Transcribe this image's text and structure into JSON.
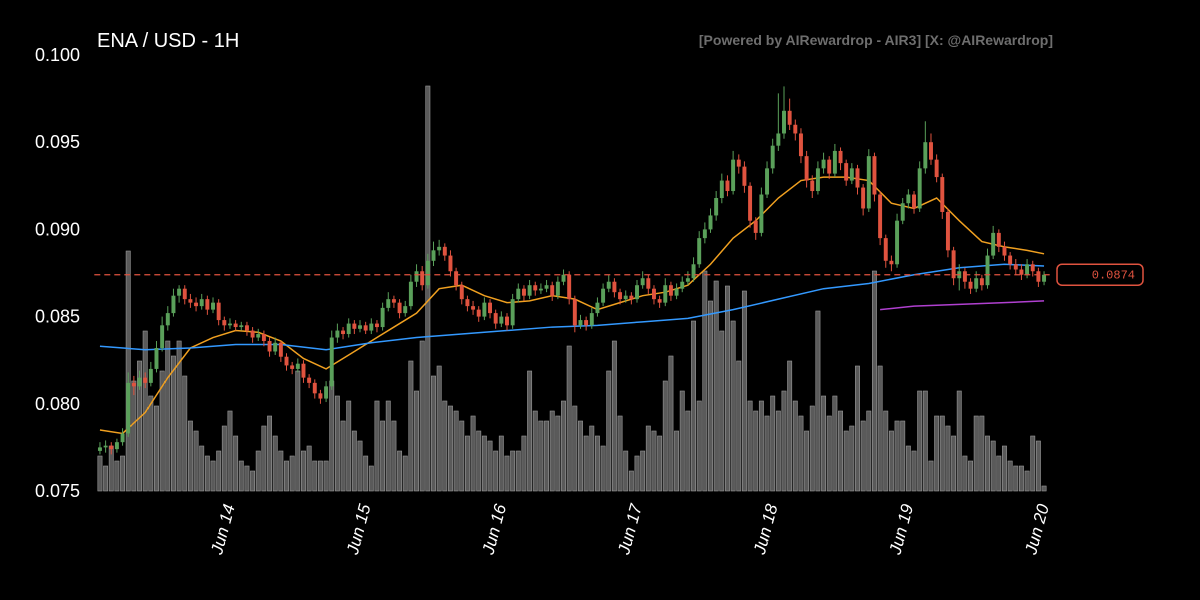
{
  "chart_data": {
    "type": "candlestick",
    "title": "ENA / USD - 1H",
    "subtitle": "[Powered by AIRewardrop - AIR3] [X: @AIRewardrop]",
    "up_color": "#5aa05a",
    "down_color": "#e0533f",
    "volume_color": "#6a6a6a",
    "ylim": [
      0.075,
      0.1
    ],
    "yticks": [
      0.075,
      {
        "value": 0.08,
        "label": "0.080"
      },
      0.085,
      {
        "value": 0.09,
        "label": "0.090"
      },
      0.095,
      {
        "value": 0.1,
        "label": "0.100"
      }
    ],
    "xlim": [
      -1,
      168
    ],
    "xticks": [
      {
        "value": 23,
        "label": "Jun 14"
      },
      {
        "value": 47,
        "label": "Jun 15"
      },
      {
        "value": 71,
        "label": "Jun 16"
      },
      {
        "value": 95,
        "label": "Jun 17"
      },
      {
        "value": 119,
        "label": "Jun 18"
      },
      {
        "value": 143,
        "label": "Jun 19"
      },
      {
        "value": 167,
        "label": "Jun 20"
      }
    ],
    "last_price": 0.0874,
    "last_price_color": "#e0533f",
    "candles": [
      [
        0.0773,
        0.0778,
        0.0771,
        0.0775
      ],
      [
        0.0775,
        0.0779,
        0.0772,
        0.0776
      ],
      [
        0.0776,
        0.0778,
        0.0771,
        0.0774
      ],
      [
        0.0774,
        0.078,
        0.0772,
        0.0778
      ],
      [
        0.0778,
        0.0786,
        0.0776,
        0.0783
      ],
      [
        0.0783,
        0.0818,
        0.0781,
        0.0812
      ],
      [
        0.0812,
        0.0816,
        0.0805,
        0.081
      ],
      [
        0.081,
        0.0819,
        0.0808,
        0.0815
      ],
      [
        0.0815,
        0.0818,
        0.0809,
        0.0812
      ],
      [
        0.0812,
        0.0824,
        0.081,
        0.082
      ],
      [
        0.082,
        0.0836,
        0.0818,
        0.0832
      ],
      [
        0.0832,
        0.085,
        0.083,
        0.0845
      ],
      [
        0.0845,
        0.0856,
        0.0842,
        0.0852
      ],
      [
        0.0852,
        0.0866,
        0.085,
        0.0862
      ],
      [
        0.0862,
        0.0868,
        0.0858,
        0.0866
      ],
      [
        0.0866,
        0.0868,
        0.0857,
        0.086
      ],
      [
        0.086,
        0.0863,
        0.0855,
        0.0858
      ],
      [
        0.0858,
        0.0861,
        0.0853,
        0.0856
      ],
      [
        0.0856,
        0.0863,
        0.0854,
        0.086
      ],
      [
        0.086,
        0.0862,
        0.0851,
        0.0854
      ],
      [
        0.0854,
        0.0861,
        0.0852,
        0.0858
      ],
      [
        0.0858,
        0.086,
        0.0845,
        0.0848
      ],
      [
        0.0848,
        0.085,
        0.0842,
        0.0845
      ],
      [
        0.0845,
        0.0849,
        0.0843,
        0.0846
      ],
      [
        0.0846,
        0.0848,
        0.0842,
        0.0844
      ],
      [
        0.0844,
        0.0847,
        0.0842,
        0.0845
      ],
      [
        0.0845,
        0.0847,
        0.0839,
        0.0842
      ],
      [
        0.0842,
        0.0844,
        0.0835,
        0.0838
      ],
      [
        0.0838,
        0.0843,
        0.0836,
        0.084
      ],
      [
        0.084,
        0.0842,
        0.0833,
        0.0836
      ],
      [
        0.0836,
        0.0838,
        0.0827,
        0.083
      ],
      [
        0.083,
        0.0838,
        0.0828,
        0.0835
      ],
      [
        0.0835,
        0.0836,
        0.0824,
        0.0827
      ],
      [
        0.0827,
        0.0829,
        0.0819,
        0.0822
      ],
      [
        0.0822,
        0.0824,
        0.0817,
        0.082
      ],
      [
        0.082,
        0.0826,
        0.0818,
        0.0823
      ],
      [
        0.0823,
        0.0825,
        0.0812,
        0.0815
      ],
      [
        0.0815,
        0.0817,
        0.0809,
        0.0812
      ],
      [
        0.0812,
        0.0814,
        0.0803,
        0.0806
      ],
      [
        0.0806,
        0.0808,
        0.08,
        0.0803
      ],
      [
        0.0803,
        0.0813,
        0.0801,
        0.081
      ],
      [
        0.081,
        0.0842,
        0.0808,
        0.0838
      ],
      [
        0.0838,
        0.0846,
        0.0835,
        0.0842
      ],
      [
        0.0842,
        0.0844,
        0.0837,
        0.084
      ],
      [
        0.084,
        0.0849,
        0.0838,
        0.0846
      ],
      [
        0.0846,
        0.0848,
        0.084,
        0.0843
      ],
      [
        0.0843,
        0.0848,
        0.0841,
        0.0845
      ],
      [
        0.0845,
        0.0847,
        0.084,
        0.0842
      ],
      [
        0.0842,
        0.0849,
        0.084,
        0.0846
      ],
      [
        0.0846,
        0.0848,
        0.0841,
        0.0844
      ],
      [
        0.0844,
        0.0858,
        0.0842,
        0.0855
      ],
      [
        0.0855,
        0.0864,
        0.0853,
        0.086
      ],
      [
        0.086,
        0.0862,
        0.0855,
        0.0858
      ],
      [
        0.0858,
        0.086,
        0.0849,
        0.0852
      ],
      [
        0.0852,
        0.0859,
        0.085,
        0.0856
      ],
      [
        0.0856,
        0.0874,
        0.0854,
        0.087
      ],
      [
        0.087,
        0.088,
        0.0867,
        0.0876
      ],
      [
        0.0876,
        0.0879,
        0.0865,
        0.0868
      ],
      [
        0.0868,
        0.0886,
        0.0866,
        0.0882
      ],
      [
        0.0882,
        0.0893,
        0.0879,
        0.0888
      ],
      [
        0.0888,
        0.0894,
        0.0885,
        0.089
      ],
      [
        0.089,
        0.0892,
        0.0882,
        0.0885
      ],
      [
        0.0885,
        0.0888,
        0.0873,
        0.0876
      ],
      [
        0.0876,
        0.0878,
        0.0865,
        0.0868
      ],
      [
        0.0868,
        0.087,
        0.0857,
        0.086
      ],
      [
        0.086,
        0.0862,
        0.0853,
        0.0856
      ],
      [
        0.0856,
        0.0859,
        0.0851,
        0.0854
      ],
      [
        0.0854,
        0.0856,
        0.0847,
        0.085
      ],
      [
        0.085,
        0.0861,
        0.0848,
        0.0858
      ],
      [
        0.0858,
        0.086,
        0.0849,
        0.0852
      ],
      [
        0.0852,
        0.0854,
        0.0843,
        0.0846
      ],
      [
        0.0846,
        0.0853,
        0.0844,
        0.085
      ],
      [
        0.085,
        0.0852,
        0.0842,
        0.0845
      ],
      [
        0.0845,
        0.0863,
        0.0843,
        0.086
      ],
      [
        0.086,
        0.0869,
        0.0858,
        0.0866
      ],
      [
        0.0866,
        0.0868,
        0.0859,
        0.0862
      ],
      [
        0.0862,
        0.0871,
        0.086,
        0.0868
      ],
      [
        0.0868,
        0.087,
        0.0862,
        0.0865
      ],
      [
        0.0865,
        0.0869,
        0.0863,
        0.0866
      ],
      [
        0.0866,
        0.0871,
        0.0864,
        0.0868
      ],
      [
        0.0868,
        0.087,
        0.0859,
        0.0862
      ],
      [
        0.0862,
        0.0873,
        0.086,
        0.087
      ],
      [
        0.087,
        0.0877,
        0.0868,
        0.0874
      ],
      [
        0.0874,
        0.0876,
        0.0857,
        0.086
      ],
      [
        0.086,
        0.0862,
        0.0841,
        0.0845
      ],
      [
        0.0845,
        0.0851,
        0.0843,
        0.0848
      ],
      [
        0.0848,
        0.085,
        0.0842,
        0.0845
      ],
      [
        0.0845,
        0.0855,
        0.0843,
        0.0852
      ],
      [
        0.0852,
        0.0861,
        0.085,
        0.0858
      ],
      [
        0.0858,
        0.0869,
        0.0856,
        0.0866
      ],
      [
        0.0866,
        0.0874,
        0.0864,
        0.087
      ],
      [
        0.087,
        0.0872,
        0.0861,
        0.0864
      ],
      [
        0.0864,
        0.0866,
        0.0857,
        0.086
      ],
      [
        0.086,
        0.0865,
        0.0858,
        0.0862
      ],
      [
        0.0862,
        0.0864,
        0.0857,
        0.086
      ],
      [
        0.086,
        0.0871,
        0.0858,
        0.0868
      ],
      [
        0.0868,
        0.0876,
        0.0866,
        0.0872
      ],
      [
        0.0872,
        0.0874,
        0.0863,
        0.0866
      ],
      [
        0.0866,
        0.0868,
        0.0857,
        0.086
      ],
      [
        0.086,
        0.0862,
        0.0855,
        0.0858
      ],
      [
        0.0858,
        0.0872,
        0.0856,
        0.0868
      ],
      [
        0.0868,
        0.087,
        0.0859,
        0.0862
      ],
      [
        0.0862,
        0.0869,
        0.086,
        0.0866
      ],
      [
        0.0866,
        0.0873,
        0.0864,
        0.087
      ],
      [
        0.087,
        0.0876,
        0.0868,
        0.0872
      ],
      [
        0.0872,
        0.0884,
        0.087,
        0.088
      ],
      [
        0.088,
        0.0899,
        0.0878,
        0.0895
      ],
      [
        0.0895,
        0.0904,
        0.0892,
        0.09
      ],
      [
        0.09,
        0.0912,
        0.0898,
        0.0908
      ],
      [
        0.0908,
        0.0922,
        0.0905,
        0.0918
      ],
      [
        0.0918,
        0.0932,
        0.0915,
        0.0928
      ],
      [
        0.0928,
        0.0931,
        0.0919,
        0.0922
      ],
      [
        0.0922,
        0.0945,
        0.092,
        0.094
      ],
      [
        0.094,
        0.0943,
        0.0932,
        0.0936
      ],
      [
        0.0936,
        0.0939,
        0.0921,
        0.0925
      ],
      [
        0.0925,
        0.0927,
        0.0901,
        0.0905
      ],
      [
        0.0905,
        0.0907,
        0.0894,
        0.0898
      ],
      [
        0.0898,
        0.0924,
        0.0896,
        0.092
      ],
      [
        0.092,
        0.0939,
        0.0918,
        0.0935
      ],
      [
        0.0935,
        0.0952,
        0.0932,
        0.0948
      ],
      [
        0.0948,
        0.0978,
        0.0945,
        0.0955
      ],
      [
        0.0955,
        0.0982,
        0.0952,
        0.0968
      ],
      [
        0.0968,
        0.0975,
        0.0957,
        0.096
      ],
      [
        0.096,
        0.0963,
        0.0951,
        0.0955
      ],
      [
        0.0955,
        0.0958,
        0.0938,
        0.0942
      ],
      [
        0.0942,
        0.0945,
        0.0924,
        0.0928
      ],
      [
        0.0928,
        0.0931,
        0.0918,
        0.0922
      ],
      [
        0.0922,
        0.0939,
        0.092,
        0.0935
      ],
      [
        0.0935,
        0.0944,
        0.0932,
        0.094
      ],
      [
        0.094,
        0.0942,
        0.0929,
        0.0932
      ],
      [
        0.0932,
        0.0949,
        0.093,
        0.0945
      ],
      [
        0.0945,
        0.0947,
        0.0934,
        0.0938
      ],
      [
        0.0938,
        0.094,
        0.0925,
        0.0928
      ],
      [
        0.0928,
        0.0938,
        0.0926,
        0.0935
      ],
      [
        0.0935,
        0.0937,
        0.092,
        0.0924
      ],
      [
        0.0924,
        0.0926,
        0.0908,
        0.0912
      ],
      [
        0.0912,
        0.0946,
        0.091,
        0.0942
      ],
      [
        0.0942,
        0.0944,
        0.0916,
        0.092
      ],
      [
        0.092,
        0.0922,
        0.0891,
        0.0895
      ],
      [
        0.0895,
        0.0897,
        0.0878,
        0.0882
      ],
      [
        0.0882,
        0.0885,
        0.0876,
        0.088
      ],
      [
        0.088,
        0.0909,
        0.0878,
        0.0905
      ],
      [
        0.0905,
        0.0918,
        0.0903,
        0.0915
      ],
      [
        0.0915,
        0.0923,
        0.0912,
        0.092
      ],
      [
        0.092,
        0.0922,
        0.0909,
        0.0912
      ],
      [
        0.0912,
        0.0939,
        0.091,
        0.0935
      ],
      [
        0.0935,
        0.0962,
        0.0932,
        0.095
      ],
      [
        0.095,
        0.0955,
        0.0937,
        0.094
      ],
      [
        0.094,
        0.0943,
        0.0927,
        0.093
      ],
      [
        0.093,
        0.0932,
        0.0906,
        0.091
      ],
      [
        0.091,
        0.0912,
        0.0884,
        0.0888
      ],
      [
        0.0888,
        0.089,
        0.0868,
        0.0872
      ],
      [
        0.0872,
        0.088,
        0.0865,
        0.0876
      ],
      [
        0.0876,
        0.0878,
        0.0866,
        0.087
      ],
      [
        0.087,
        0.0872,
        0.0863,
        0.0866
      ],
      [
        0.0866,
        0.0876,
        0.0864,
        0.0872
      ],
      [
        0.0872,
        0.0874,
        0.0865,
        0.0868
      ],
      [
        0.0868,
        0.0889,
        0.0866,
        0.0885
      ],
      [
        0.0885,
        0.0902,
        0.0883,
        0.0898
      ],
      [
        0.0898,
        0.09,
        0.0887,
        0.089
      ],
      [
        0.089,
        0.0893,
        0.0882,
        0.0885
      ],
      [
        0.0885,
        0.0887,
        0.0877,
        0.088
      ],
      [
        0.088,
        0.0883,
        0.0874,
        0.0877
      ],
      [
        0.0877,
        0.088,
        0.0871,
        0.0874
      ],
      [
        0.0874,
        0.0883,
        0.0872,
        0.088
      ],
      [
        0.088,
        0.0882,
        0.0873,
        0.0876
      ],
      [
        0.0876,
        0.0878,
        0.0867,
        0.087
      ],
      [
        0.087,
        0.0876,
        0.0868,
        0.0874
      ]
    ],
    "volumes": [
      35,
      25,
      45,
      30,
      35,
      240,
      110,
      130,
      160,
      95,
      85,
      120,
      150,
      135,
      150,
      115,
      70,
      60,
      45,
      35,
      30,
      40,
      65,
      80,
      55,
      30,
      25,
      20,
      40,
      65,
      75,
      55,
      40,
      30,
      35,
      120,
      40,
      45,
      30,
      30,
      30,
      110,
      95,
      70,
      90,
      60,
      50,
      35,
      25,
      90,
      70,
      90,
      70,
      40,
      35,
      130,
      100,
      150,
      405,
      115,
      125,
      90,
      85,
      80,
      70,
      55,
      75,
      60,
      55,
      50,
      40,
      55,
      35,
      40,
      40,
      55,
      120,
      80,
      70,
      70,
      80,
      75,
      90,
      145,
      85,
      70,
      55,
      65,
      55,
      45,
      120,
      150,
      75,
      40,
      20,
      35,
      40,
      65,
      60,
      55,
      110,
      135,
      60,
      100,
      80,
      170,
      90,
      220,
      190,
      210,
      160,
      205,
      170,
      130,
      200,
      90,
      80,
      90,
      75,
      95,
      80,
      100,
      130,
      90,
      75,
      60,
      85,
      180,
      95,
      75,
      95,
      80,
      60,
      65,
      125,
      70,
      80,
      220,
      125,
      80,
      60,
      70,
      70,
      45,
      40,
      100,
      100,
      30,
      75,
      75,
      65,
      55,
      100,
      35,
      30,
      75,
      75,
      55,
      50,
      35,
      45,
      30,
      25,
      25,
      20,
      55,
      50,
      5
    ],
    "lines": [
      {
        "color": "#f0a020",
        "x": [
          0,
          4,
          8,
          12,
          16,
          20,
          24,
          28,
          32,
          36,
          40,
          44,
          48,
          52,
          56,
          60,
          64,
          68,
          72,
          76,
          80,
          84,
          88,
          92,
          96,
          100,
          104,
          108,
          112,
          116,
          120,
          124,
          128,
          132,
          136,
          140,
          144,
          148,
          152,
          156,
          160,
          164,
          167
        ],
        "values": [
          0.0785,
          0.0783,
          0.0795,
          0.0815,
          0.0832,
          0.0838,
          0.0842,
          0.0841,
          0.0836,
          0.0826,
          0.082,
          0.0828,
          0.0836,
          0.0844,
          0.0852,
          0.0866,
          0.0868,
          0.0862,
          0.0858,
          0.0859,
          0.0862,
          0.086,
          0.0854,
          0.0858,
          0.0862,
          0.0864,
          0.0868,
          0.088,
          0.0895,
          0.0905,
          0.0918,
          0.0928,
          0.093,
          0.093,
          0.0928,
          0.0915,
          0.0912,
          0.0918,
          0.0905,
          0.0893,
          0.089,
          0.0888,
          0.0886
        ]
      },
      {
        "color": "#3399ff",
        "x": [
          0,
          8,
          16,
          24,
          32,
          40,
          48,
          56,
          64,
          72,
          80,
          88,
          96,
          104,
          112,
          120,
          128,
          136,
          144,
          152,
          160,
          167
        ],
        "values": [
          0.0833,
          0.0831,
          0.0832,
          0.0834,
          0.0834,
          0.0831,
          0.0835,
          0.0838,
          0.084,
          0.0842,
          0.0844,
          0.0845,
          0.0847,
          0.0849,
          0.0854,
          0.086,
          0.0866,
          0.0869,
          0.0874,
          0.0878,
          0.088,
          0.0879
        ]
      },
      {
        "color": "#b040d0",
        "x": [
          138,
          144,
          152,
          160,
          167
        ],
        "values": [
          0.0854,
          0.0856,
          0.0857,
          0.0858,
          0.0859
        ]
      }
    ]
  }
}
